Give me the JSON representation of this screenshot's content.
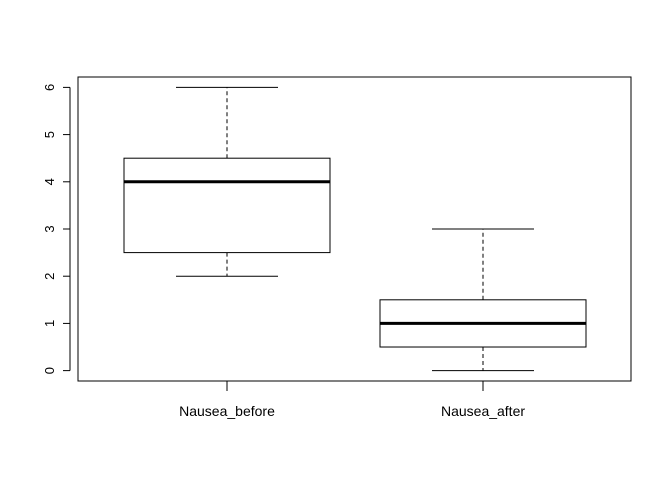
{
  "chart_data": {
    "type": "boxplot",
    "title": "",
    "xlabel": "",
    "ylabel": "",
    "ylim": [
      -0.22,
      6.22
    ],
    "yticks": [
      0,
      1,
      2,
      3,
      4,
      5,
      6
    ],
    "ytick_labels": [
      "0",
      "1",
      "2",
      "3",
      "4",
      "5",
      "6"
    ],
    "grid": false,
    "categories": [
      "Nausea_before",
      "Nausea_after"
    ],
    "boxes": [
      {
        "name": "Nausea_before",
        "min": 2,
        "q1": 2.5,
        "median": 4,
        "q3": 4.5,
        "max": 6
      },
      {
        "name": "Nausea_after",
        "min": 0,
        "q1": 0.5,
        "median": 1,
        "q3": 1.5,
        "max": 3
      }
    ]
  }
}
